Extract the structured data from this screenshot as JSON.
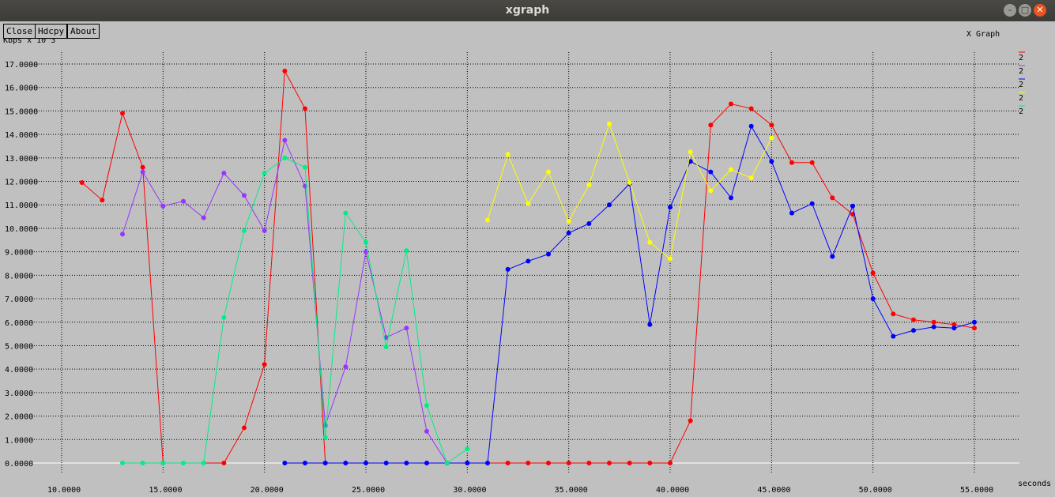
{
  "window": {
    "title": "xgraph"
  },
  "buttons": {
    "close": "Close",
    "hdcpy": "Hdcpy",
    "about": "About"
  },
  "chart_data": {
    "type": "line",
    "title": "X Graph",
    "ylabel": "Kbps x 10^3",
    "xlabel": "seconds",
    "xlim": [
      10,
      55
    ],
    "ylim": [
      0,
      17
    ],
    "x_ticks": [
      "10.0000",
      "15.0000",
      "20.0000",
      "25.0000",
      "30.0000",
      "35.0000",
      "40.0000",
      "45.0000",
      "50.0000",
      "55.0000"
    ],
    "y_ticks": [
      "0.0000",
      "1.0000",
      "2.0000",
      "3.0000",
      "4.0000",
      "5.0000",
      "6.0000",
      "7.0000",
      "8.0000",
      "9.0000",
      "10.0000",
      "11.0000",
      "12.0000",
      "13.0000",
      "14.0000",
      "15.0000",
      "16.0000",
      "17.0000"
    ],
    "grid": true,
    "legend_position": "right",
    "series": [
      {
        "name": "2",
        "color": "#ff0000",
        "points": [
          [
            11,
            11.95
          ],
          [
            12,
            11.2
          ],
          [
            13,
            14.9
          ],
          [
            14,
            12.6
          ],
          [
            15,
            0
          ],
          [
            18,
            0
          ],
          [
            19,
            1.5
          ],
          [
            20,
            4.2
          ],
          [
            21,
            16.7
          ],
          [
            22,
            15.1
          ],
          [
            23,
            0
          ],
          [
            32,
            0
          ],
          [
            33,
            0
          ],
          [
            34,
            0
          ],
          [
            35,
            0
          ],
          [
            36,
            0
          ],
          [
            37,
            0
          ],
          [
            38,
            0
          ],
          [
            39,
            0
          ],
          [
            40,
            0
          ],
          [
            41,
            1.8
          ],
          [
            42,
            14.4
          ],
          [
            43,
            15.3
          ],
          [
            44,
            15.1
          ],
          [
            45,
            14.4
          ],
          [
            46,
            12.8
          ],
          [
            47,
            12.8
          ],
          [
            48,
            11.3
          ],
          [
            49,
            10.6
          ],
          [
            50,
            8.1
          ],
          [
            51,
            6.35
          ],
          [
            52,
            6.1
          ],
          [
            53,
            6.0
          ],
          [
            54,
            5.9
          ],
          [
            55,
            5.75
          ]
        ]
      },
      {
        "name": "2",
        "color": "#9933ff",
        "points": [
          [
            13,
            9.75
          ],
          [
            14,
            12.4
          ],
          [
            15,
            10.95
          ],
          [
            16,
            11.15
          ],
          [
            17,
            10.45
          ],
          [
            18,
            12.35
          ],
          [
            19,
            11.4
          ],
          [
            20,
            9.9
          ],
          [
            21,
            13.75
          ],
          [
            22,
            11.8
          ],
          [
            23,
            1.6
          ],
          [
            24,
            4.1
          ],
          [
            25,
            9.0
          ],
          [
            26,
            5.35
          ],
          [
            27,
            5.75
          ],
          [
            28,
            1.35
          ],
          [
            29,
            0
          ],
          [
            30,
            0
          ]
        ]
      },
      {
        "name": "2",
        "color": "#0000ff",
        "points": [
          [
            21,
            0
          ],
          [
            22,
            0
          ],
          [
            23,
            0
          ],
          [
            24,
            0
          ],
          [
            25,
            0
          ],
          [
            26,
            0
          ],
          [
            27,
            0
          ],
          [
            28,
            0
          ],
          [
            29,
            0
          ],
          [
            30,
            0
          ],
          [
            31,
            0
          ],
          [
            32,
            8.25
          ],
          [
            33,
            8.6
          ],
          [
            34,
            8.9
          ],
          [
            35,
            9.8
          ],
          [
            36,
            10.2
          ],
          [
            37,
            11.0
          ],
          [
            38,
            11.9
          ],
          [
            39,
            5.9
          ],
          [
            40,
            10.9
          ],
          [
            41,
            12.85
          ],
          [
            42,
            12.4
          ],
          [
            43,
            11.3
          ],
          [
            44,
            14.35
          ],
          [
            45,
            12.85
          ],
          [
            46,
            10.65
          ],
          [
            47,
            11.05
          ],
          [
            48,
            8.8
          ],
          [
            49,
            10.95
          ],
          [
            50,
            7.0
          ],
          [
            51,
            5.4
          ],
          [
            52,
            5.65
          ],
          [
            53,
            5.8
          ],
          [
            54,
            5.75
          ],
          [
            55,
            6.0
          ]
        ]
      },
      {
        "name": "2",
        "color": "#ffff00",
        "points": [
          [
            31,
            10.35
          ],
          [
            32,
            13.15
          ],
          [
            33,
            11.05
          ],
          [
            34,
            12.4
          ],
          [
            35,
            10.3
          ],
          [
            36,
            11.85
          ],
          [
            37,
            14.45
          ],
          [
            38,
            11.95
          ],
          [
            39,
            9.4
          ],
          [
            40,
            8.7
          ],
          [
            41,
            13.25
          ],
          [
            42,
            11.6
          ],
          [
            43,
            12.5
          ],
          [
            44,
            12.15
          ],
          [
            45,
            13.85
          ]
        ]
      },
      {
        "name": "2",
        "color": "#00ee88",
        "points": [
          [
            13,
            0
          ],
          [
            14,
            0
          ],
          [
            15,
            0
          ],
          [
            16,
            0
          ],
          [
            17,
            0
          ],
          [
            18,
            6.2
          ],
          [
            19,
            9.9
          ],
          [
            20,
            12.35
          ],
          [
            21,
            13.0
          ],
          [
            22,
            12.6
          ],
          [
            23,
            1.1
          ],
          [
            24,
            10.65
          ],
          [
            25,
            9.4
          ],
          [
            26,
            4.95
          ],
          [
            27,
            9.05
          ],
          [
            28,
            2.45
          ],
          [
            29,
            0
          ],
          [
            30,
            0.6
          ]
        ]
      }
    ]
  }
}
